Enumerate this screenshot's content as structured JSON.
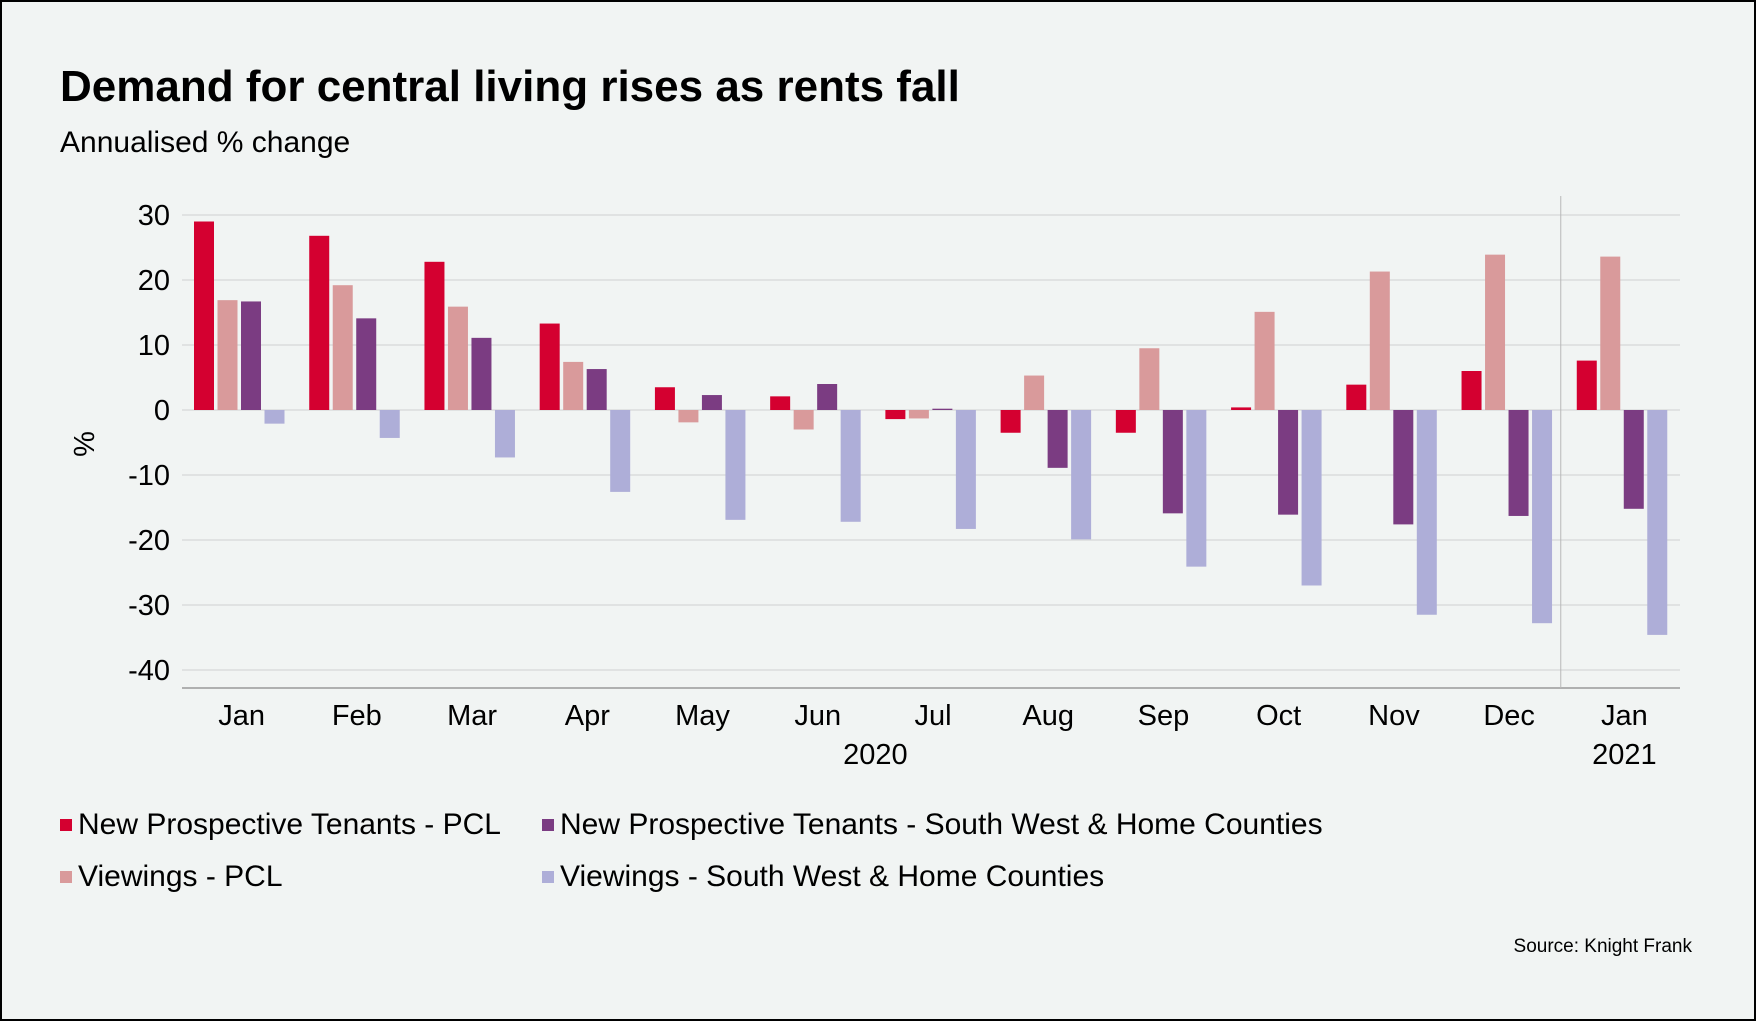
{
  "title": "Demand for central living rises as rents fall",
  "subtitle": "Annualised % change",
  "source": "Source: Knight Frank",
  "chart_data": {
    "type": "bar",
    "ylabel": "%",
    "ylim": [
      -43,
      33
    ],
    "yticks": [
      30,
      20,
      10,
      0,
      -10,
      -20,
      -30,
      -40
    ],
    "grid": true,
    "categories": [
      "Jan",
      "Feb",
      "Mar",
      "Apr",
      "May",
      "Jun",
      "Jul",
      "Aug",
      "Sep",
      "Oct",
      "Nov",
      "Dec",
      "Jan"
    ],
    "year_labels": [
      {
        "label": "2020",
        "from": 0,
        "to": 11
      },
      {
        "label": "2021",
        "from": 12,
        "to": 12
      }
    ],
    "series": [
      {
        "name": "New Prospective Tenants - PCL",
        "color": "#d40030",
        "values": [
          29,
          26.8,
          22.8,
          13.3,
          3.5,
          2.1,
          -1.4,
          -3.5,
          -3.5,
          0.4,
          3.9,
          6,
          7.6
        ]
      },
      {
        "name": "Viewings - PCL",
        "color": "#d99a9b",
        "values": [
          16.9,
          19.2,
          15.9,
          7.4,
          -1.9,
          -3,
          -1.3,
          5.3,
          9.5,
          15.1,
          21.3,
          23.9,
          23.6
        ]
      },
      {
        "name": "New Prospective Tenants - South West & Home Counties",
        "color": "#7b3c82",
        "values": [
          16.7,
          14.1,
          11.1,
          6.3,
          2.3,
          4,
          0.2,
          -8.9,
          -15.9,
          -16.1,
          -17.6,
          -16.3,
          -15.2
        ]
      },
      {
        "name": "Viewings - South West & Home Counties",
        "color": "#aeaed8",
        "values": [
          -2.1,
          -4.3,
          -7.3,
          -12.6,
          -16.9,
          -17.2,
          -18.3,
          -19.9,
          -24.1,
          -27,
          -31.5,
          -32.8,
          -34.6
        ]
      }
    ],
    "legend": {
      "placement": "bottom",
      "items": [
        {
          "label": "New Prospective Tenants - PCL",
          "color": "#d40030"
        },
        {
          "label": "New Prospective Tenants - South West & Home Counties",
          "color": "#7b3c82"
        },
        {
          "label": "Viewings - PCL",
          "color": "#d99a9b"
        },
        {
          "label": "Viewings - South West & Home Counties",
          "color": "#aeaed8"
        }
      ]
    }
  }
}
